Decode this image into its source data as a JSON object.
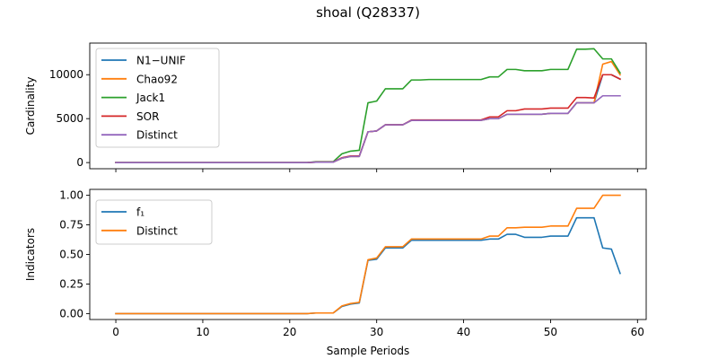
{
  "title": "shoal (Q28337)",
  "chart_data": [
    {
      "type": "line",
      "ylabel": "Cardinality",
      "xlabel": "",
      "xlim": [
        -3,
        61
      ],
      "ylim": [
        -700,
        13600
      ],
      "xticks": [
        0,
        10,
        20,
        30,
        40,
        50,
        60
      ],
      "yticks": [
        0,
        5000,
        10000
      ],
      "show_x_tick_labels": false,
      "legend_position": "upper left",
      "x": [
        0,
        1,
        2,
        3,
        4,
        5,
        6,
        7,
        8,
        9,
        10,
        11,
        12,
        13,
        14,
        15,
        16,
        17,
        18,
        19,
        20,
        21,
        22,
        23,
        24,
        25,
        26,
        27,
        28,
        29,
        30,
        31,
        32,
        33,
        34,
        35,
        36,
        37,
        38,
        39,
        40,
        41,
        42,
        43,
        44,
        45,
        46,
        47,
        48,
        49,
        50,
        51,
        52,
        53,
        54,
        55,
        56,
        57,
        58
      ],
      "series": [
        {
          "name": "N1−UNIF",
          "color": "#1f77b4",
          "values": [
            0,
            0,
            0,
            0,
            0,
            0,
            0,
            0,
            0,
            0,
            0,
            0,
            0,
            0,
            0,
            0,
            0,
            0,
            0,
            0,
            0,
            0,
            0,
            50,
            50,
            50,
            500,
            700,
            700,
            3500,
            3600,
            4300,
            4300,
            4300,
            4800,
            4800,
            4800,
            4800,
            4800,
            4800,
            4800,
            4800,
            4800,
            5000,
            5000,
            5500,
            5500,
            5500,
            5500,
            5500,
            5600,
            5600,
            5600,
            6800,
            6800,
            6800,
            10000,
            10000,
            9500
          ]
        },
        {
          "name": "Chao92",
          "color": "#ff7f0e",
          "values": [
            0,
            0,
            0,
            0,
            0,
            0,
            0,
            0,
            0,
            0,
            0,
            0,
            0,
            0,
            0,
            0,
            0,
            0,
            0,
            0,
            0,
            0,
            0,
            50,
            50,
            50,
            500,
            700,
            700,
            3500,
            3600,
            4300,
            4300,
            4300,
            4800,
            4800,
            4800,
            4800,
            4800,
            4800,
            4800,
            4800,
            4800,
            5000,
            5000,
            5500,
            5500,
            5500,
            5500,
            5500,
            5600,
            5600,
            5600,
            6800,
            6800,
            6800,
            11200,
            11500,
            10000
          ]
        },
        {
          "name": "Jack1",
          "color": "#2ca02c",
          "values": [
            0,
            0,
            0,
            0,
            0,
            0,
            0,
            0,
            0,
            0,
            0,
            0,
            0,
            0,
            0,
            0,
            0,
            0,
            0,
            0,
            0,
            0,
            0,
            100,
            100,
            100,
            1000,
            1300,
            1400,
            6800,
            7000,
            8400,
            8400,
            8400,
            9400,
            9400,
            9450,
            9450,
            9450,
            9450,
            9450,
            9450,
            9450,
            9750,
            9750,
            10600,
            10600,
            10450,
            10450,
            10450,
            10600,
            10600,
            10600,
            12900,
            12900,
            12950,
            11800,
            11800,
            10200
          ]
        },
        {
          "name": "SOR",
          "color": "#d62728",
          "values": [
            0,
            0,
            0,
            0,
            0,
            0,
            0,
            0,
            0,
            0,
            0,
            0,
            0,
            0,
            0,
            0,
            0,
            0,
            0,
            0,
            0,
            0,
            0,
            60,
            60,
            60,
            550,
            750,
            750,
            3500,
            3600,
            4300,
            4300,
            4300,
            4850,
            4850,
            4850,
            4850,
            4850,
            4850,
            4850,
            4850,
            4850,
            5200,
            5200,
            5900,
            5900,
            6100,
            6100,
            6100,
            6200,
            6200,
            6200,
            7400,
            7400,
            7350,
            10000,
            10000,
            9500
          ]
        },
        {
          "name": "Distinct",
          "color": "#9467bd",
          "values": [
            0,
            0,
            0,
            0,
            0,
            0,
            0,
            0,
            0,
            0,
            0,
            0,
            0,
            0,
            0,
            0,
            0,
            0,
            0,
            0,
            0,
            0,
            0,
            50,
            50,
            50,
            500,
            700,
            700,
            3500,
            3600,
            4300,
            4300,
            4300,
            4800,
            4800,
            4800,
            4800,
            4800,
            4800,
            4800,
            4800,
            4800,
            5000,
            5000,
            5500,
            5500,
            5500,
            5500,
            5500,
            5600,
            5600,
            5600,
            6800,
            6800,
            6800,
            7600,
            7600,
            7600
          ]
        }
      ]
    },
    {
      "type": "line",
      "ylabel": "Indicators",
      "xlabel": "Sample Periods",
      "xlim": [
        -3,
        61
      ],
      "ylim": [
        -0.05,
        1.05
      ],
      "xticks": [
        0,
        10,
        20,
        30,
        40,
        50,
        60
      ],
      "yticks": [
        0.0,
        0.25,
        0.5,
        0.75,
        1.0
      ],
      "ytick_labels": [
        "0.00",
        "0.25",
        "0.50",
        "0.75",
        "1.00"
      ],
      "show_x_tick_labels": true,
      "legend_position": "upper left",
      "x": [
        0,
        1,
        2,
        3,
        4,
        5,
        6,
        7,
        8,
        9,
        10,
        11,
        12,
        13,
        14,
        15,
        16,
        17,
        18,
        19,
        20,
        21,
        22,
        23,
        24,
        25,
        26,
        27,
        28,
        29,
        30,
        31,
        32,
        33,
        34,
        35,
        36,
        37,
        38,
        39,
        40,
        41,
        42,
        43,
        44,
        45,
        46,
        47,
        48,
        49,
        50,
        51,
        52,
        53,
        54,
        55,
        56,
        57,
        58
      ],
      "series": [
        {
          "name": "f₁",
          "color": "#1f77b4",
          "values": [
            0,
            0,
            0,
            0,
            0,
            0,
            0,
            0,
            0,
            0,
            0,
            0,
            0,
            0,
            0,
            0,
            0,
            0,
            0,
            0,
            0,
            0,
            0,
            0.005,
            0.005,
            0.005,
            0.06,
            0.08,
            0.09,
            0.45,
            0.46,
            0.555,
            0.555,
            0.555,
            0.62,
            0.62,
            0.62,
            0.62,
            0.62,
            0.62,
            0.62,
            0.62,
            0.62,
            0.63,
            0.63,
            0.67,
            0.67,
            0.645,
            0.645,
            0.645,
            0.655,
            0.655,
            0.655,
            0.81,
            0.81,
            0.81,
            0.555,
            0.545,
            0.34
          ]
        },
        {
          "name": "Distinct",
          "color": "#ff7f0e",
          "values": [
            0,
            0,
            0,
            0,
            0,
            0,
            0,
            0,
            0,
            0,
            0,
            0,
            0,
            0,
            0,
            0,
            0,
            0,
            0,
            0,
            0,
            0,
            0,
            0.005,
            0.005,
            0.005,
            0.065,
            0.085,
            0.095,
            0.455,
            0.47,
            0.565,
            0.565,
            0.565,
            0.63,
            0.63,
            0.63,
            0.63,
            0.63,
            0.63,
            0.63,
            0.63,
            0.63,
            0.655,
            0.655,
            0.725,
            0.725,
            0.73,
            0.73,
            0.73,
            0.74,
            0.74,
            0.74,
            0.89,
            0.89,
            0.89,
            1.0,
            1.0,
            1.0
          ]
        }
      ]
    }
  ]
}
